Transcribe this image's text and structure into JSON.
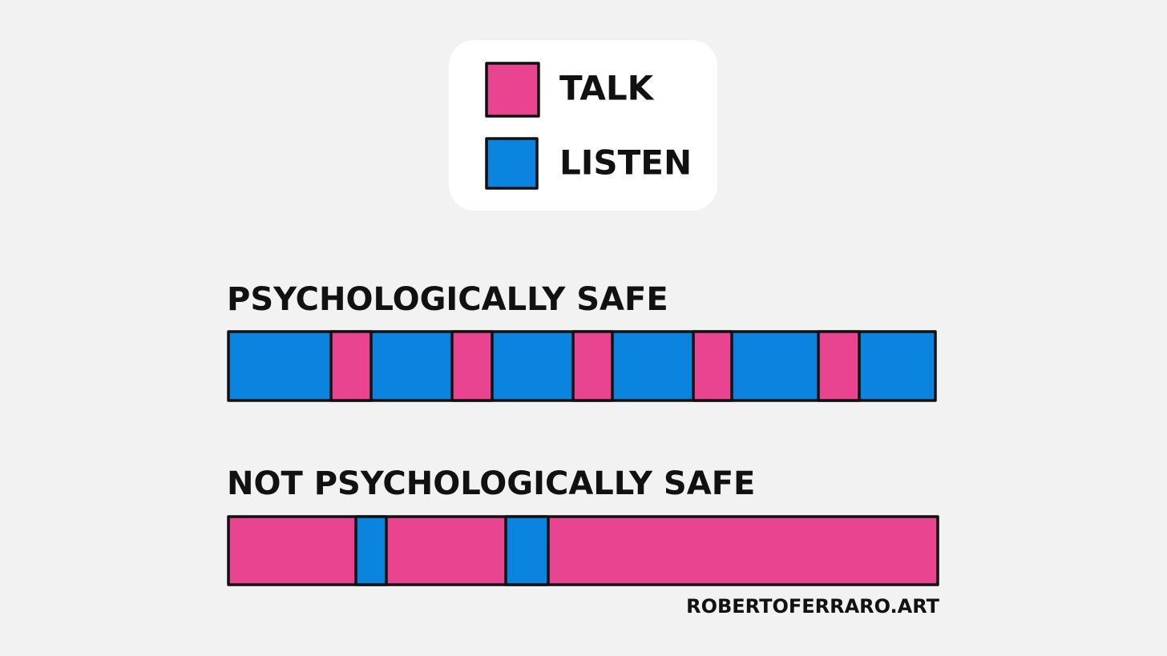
{
  "legend": {
    "items": [
      {
        "label": "TALK"
      },
      {
        "label": "LISTEN"
      }
    ]
  },
  "rows": [
    {
      "title": "PSYCHOLOGICALLY SAFE"
    },
    {
      "title": "NOT PSYCHOLOGICALLY SAFE"
    }
  ],
  "credit": "ROBERTOFERRARO.ART"
}
